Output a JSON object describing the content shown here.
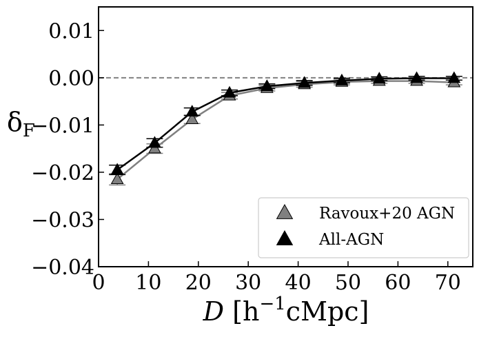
{
  "chart_data": {
    "type": "line",
    "xlabel": "D [h⁻¹cMpc]",
    "ylabel": "δF",
    "xlim": [
      0,
      75
    ],
    "ylim": [
      -0.04,
      0.015
    ],
    "xticks": [
      0,
      10,
      20,
      30,
      40,
      50,
      60,
      70
    ],
    "yticks": [
      -0.04,
      -0.03,
      -0.02,
      -0.01,
      0.0,
      0.01
    ],
    "xtick_labels": [
      "0",
      "10",
      "20",
      "30",
      "40",
      "50",
      "60",
      "70"
    ],
    "ytick_labels": [
      "−0.04",
      "−0.03",
      "−0.02",
      "−0.01",
      "0.00",
      "0.01"
    ],
    "reference_line_y": 0.0,
    "grid": false,
    "legend_position": "bottom-right",
    "x": [
      3.75,
      11.25,
      18.75,
      26.25,
      33.75,
      41.25,
      48.75,
      56.25,
      63.75,
      71.25
    ],
    "series": [
      {
        "name": "Ravoux+20 AGN",
        "color": "#808080",
        "marker": "triangle",
        "values": [
          -0.0215,
          -0.015,
          -0.0088,
          -0.0038,
          -0.0022,
          -0.0014,
          -0.0009,
          -0.0007,
          -0.0007,
          -0.001
        ],
        "errors": [
          0.0012,
          0.001,
          0.0009,
          0.0007,
          0.0006,
          0.0006,
          0.0006,
          0.0005,
          0.0005,
          0.0005
        ]
      },
      {
        "name": "All-AGN",
        "color": "#000000",
        "marker": "triangle",
        "values": [
          -0.0195,
          -0.0138,
          -0.0072,
          -0.0032,
          -0.0018,
          -0.0011,
          -0.0006,
          -0.0002,
          -0.0001,
          -0.0001
        ],
        "errors": [
          0.001,
          0.0009,
          0.0008,
          0.0006,
          0.0005,
          0.0005,
          0.0005,
          0.0004,
          0.0004,
          0.0004
        ]
      }
    ]
  }
}
